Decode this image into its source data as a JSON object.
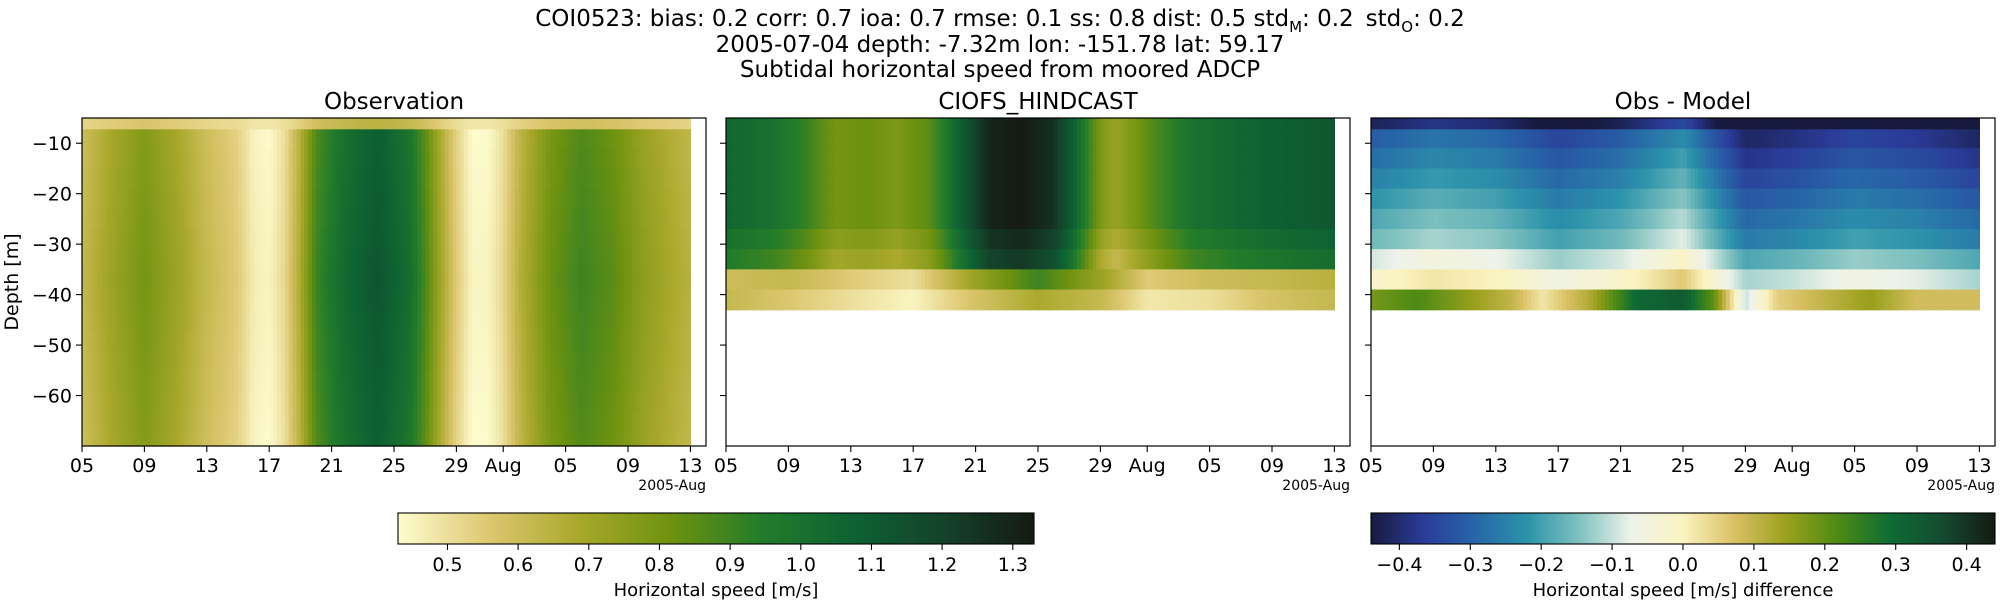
{
  "figure": {
    "title_lines": [
      "COI0523: bias: 0.2  corr: 0.7  ioa: 0.7  rmse: 0.1  ss: 0.8  dist: 0.5  std",
      "2005-07-04 depth: -7.32m lon: -151.78 lat: 59.17",
      "Subtidal horizontal speed from moored ADCP"
    ],
    "std_model_sub": "M",
    "std_obs_sub": "O",
    "std_model_value": ": 0.2",
    "std_obs_value": ": 0.2",
    "std_label": "std"
  },
  "chart_data": [
    {
      "type": "heatmap",
      "title": "Observation",
      "ylabel": "Depth [m]",
      "xlabel": "",
      "x_range": [
        "2005-07-05",
        "2005-08-14"
      ],
      "data_x_range": [
        "2005-07-05",
        "2005-08-13"
      ],
      "ylim": [
        -70,
        -5
      ],
      "depth_levels": [
        -5.5,
        -9,
        -13,
        -17,
        -21,
        -25,
        -29,
        -33,
        -37,
        -41,
        -45,
        -49,
        -53,
        -57,
        -61,
        -65,
        -69
      ],
      "x_ticks": [
        "05",
        "09",
        "13",
        "17",
        "21",
        "25",
        "29",
        "Aug",
        "05",
        "09",
        "13"
      ],
      "x_offset_label": "2005-Aug",
      "y_ticks": [
        -10,
        -20,
        -30,
        -40,
        -50,
        -60
      ],
      "colorbar": "Horizontal speed [m/s]",
      "speed_by_day": [
        [
          "2005-07-05",
          0.62
        ],
        [
          "2005-07-07",
          0.72
        ],
        [
          "2005-07-09",
          0.8
        ],
        [
          "2005-07-11",
          0.72
        ],
        [
          "2005-07-13",
          0.62
        ],
        [
          "2005-07-15",
          0.55
        ],
        [
          "2005-07-16",
          0.47
        ],
        [
          "2005-07-17",
          0.45
        ],
        [
          "2005-07-18",
          0.52
        ],
        [
          "2005-07-19",
          0.68
        ],
        [
          "2005-07-20",
          0.9
        ],
        [
          "2005-07-22",
          1.05
        ],
        [
          "2005-07-24",
          1.13
        ],
        [
          "2005-07-26",
          1.02
        ],
        [
          "2005-07-27",
          0.88
        ],
        [
          "2005-07-28",
          0.7
        ],
        [
          "2005-07-29",
          0.55
        ],
        [
          "2005-07-30",
          0.45
        ],
        [
          "2005-07-31",
          0.45
        ],
        [
          "2005-08-01",
          0.52
        ],
        [
          "2005-08-02",
          0.65
        ],
        [
          "2005-08-04",
          0.82
        ],
        [
          "2005-08-06",
          0.9
        ],
        [
          "2005-08-08",
          0.85
        ],
        [
          "2005-08-10",
          0.75
        ],
        [
          "2005-08-12",
          0.68
        ],
        [
          "2005-08-13",
          0.65
        ]
      ],
      "top_bin_speed": 0.52
    },
    {
      "type": "heatmap",
      "title": "CIOFS_HINDCAST",
      "ylabel": "",
      "x_range": [
        "2005-07-05",
        "2005-08-14"
      ],
      "data_x_range": [
        "2005-07-05",
        "2005-08-13"
      ],
      "ylim": [
        -70,
        -5
      ],
      "depth_levels": [
        -5.5,
        -9,
        -13,
        -17,
        -21,
        -25,
        -29,
        -33,
        -37,
        -41
      ],
      "x_ticks": [
        "05",
        "09",
        "13",
        "17",
        "21",
        "25",
        "29",
        "Aug",
        "05",
        "09",
        "13"
      ],
      "x_offset_label": "2005-Aug",
      "colorbar": "Horizontal speed [m/s]",
      "speed_by_day": [
        [
          "2005-07-05",
          1.05
        ],
        [
          "2005-07-08",
          1.0
        ],
        [
          "2005-07-10",
          0.92
        ],
        [
          "2005-07-12",
          0.8
        ],
        [
          "2005-07-14",
          0.82
        ],
        [
          "2005-07-16",
          0.78
        ],
        [
          "2005-07-18",
          0.85
        ],
        [
          "2005-07-19",
          0.95
        ],
        [
          "2005-07-20",
          1.08
        ],
        [
          "2005-07-21",
          1.2
        ],
        [
          "2005-07-22",
          1.3
        ],
        [
          "2005-07-24",
          1.33
        ],
        [
          "2005-07-26",
          1.25
        ],
        [
          "2005-07-27",
          1.12
        ],
        [
          "2005-07-28",
          0.95
        ],
        [
          "2005-07-29",
          0.78
        ],
        [
          "2005-07-30",
          0.72
        ],
        [
          "2005-07-31",
          0.78
        ],
        [
          "2005-08-02",
          0.9
        ],
        [
          "2005-08-04",
          1.0
        ],
        [
          "2005-08-07",
          1.05
        ],
        [
          "2005-08-09",
          1.08
        ],
        [
          "2005-08-11",
          1.1
        ],
        [
          "2005-08-13",
          1.12
        ]
      ],
      "near_bottom_speed": [
        [
          "2005-07-05",
          0.6
        ],
        [
          "2005-07-09",
          0.62
        ],
        [
          "2005-07-13",
          0.55
        ],
        [
          "2005-07-17",
          0.5
        ],
        [
          "2005-07-21",
          0.72
        ],
        [
          "2005-07-25",
          0.9
        ],
        [
          "2005-07-29",
          0.72
        ],
        [
          "2005-08-01",
          0.55
        ],
        [
          "2005-08-05",
          0.6
        ],
        [
          "2005-08-09",
          0.62
        ],
        [
          "2005-08-13",
          0.65
        ]
      ],
      "bottom_bin_speed": [
        [
          "2005-07-05",
          0.62
        ],
        [
          "2005-07-09",
          0.56
        ],
        [
          "2005-07-13",
          0.5
        ],
        [
          "2005-07-17",
          0.45
        ],
        [
          "2005-07-21",
          0.58
        ],
        [
          "2005-07-25",
          0.68
        ],
        [
          "2005-07-29",
          0.62
        ],
        [
          "2005-08-01",
          0.48
        ],
        [
          "2005-08-05",
          0.5
        ],
        [
          "2005-08-09",
          0.58
        ],
        [
          "2005-08-13",
          0.62
        ]
      ]
    },
    {
      "type": "heatmap",
      "title": "Obs - Model",
      "ylabel": "",
      "x_range": [
        "2005-07-05",
        "2005-08-14"
      ],
      "data_x_range": [
        "2005-07-05",
        "2005-08-13"
      ],
      "ylim": [
        -70,
        -5
      ],
      "depth_levels": [
        -5.5,
        -9,
        -13,
        -17,
        -21,
        -25,
        -29,
        -33,
        -37,
        -41
      ],
      "x_ticks": [
        "05",
        "09",
        "13",
        "17",
        "21",
        "25",
        "29",
        "Aug",
        "05",
        "09",
        "13"
      ],
      "x_offset_label": "2005-Aug",
      "colorbar": "Horizontal speed [m/s] difference",
      "row_difference": [
        -0.44,
        -0.33,
        -0.3,
        -0.27,
        -0.24,
        -0.21,
        -0.18,
        -0.11,
        -0.04,
        0.12
      ],
      "time_difference": [
        [
          "2005-07-05",
          0.02
        ],
        [
          "2005-07-09",
          0.06
        ],
        [
          "2005-07-13",
          0.04
        ],
        [
          "2005-07-17",
          -0.02
        ],
        [
          "2005-07-21",
          0.02
        ],
        [
          "2005-07-25",
          0.1
        ],
        [
          "2005-07-29",
          -0.08
        ],
        [
          "2005-08-01",
          -0.06
        ],
        [
          "2005-08-05",
          -0.02
        ],
        [
          "2005-08-09",
          -0.04
        ],
        [
          "2005-08-13",
          -0.08
        ]
      ],
      "bottom_bin_difference": [
        [
          "2005-07-05",
          0.18
        ],
        [
          "2005-07-08",
          0.22
        ],
        [
          "2005-07-11",
          0.16
        ],
        [
          "2005-07-14",
          0.1
        ],
        [
          "2005-07-16",
          0.02
        ],
        [
          "2005-07-19",
          0.12
        ],
        [
          "2005-07-22",
          0.3
        ],
        [
          "2005-07-25",
          0.33
        ],
        [
          "2005-07-27",
          0.2
        ],
        [
          "2005-07-29",
          -0.1
        ],
        [
          "2005-07-31",
          0.05
        ],
        [
          "2005-08-03",
          0.1
        ],
        [
          "2005-08-06",
          0.15
        ],
        [
          "2005-08-09",
          0.08
        ],
        [
          "2005-08-13",
          0.08
        ]
      ]
    }
  ],
  "colorbars": [
    {
      "label": "Horizontal speed [m/s]",
      "range": [
        0.43,
        1.33
      ],
      "ticks": [
        "0.5",
        "0.6",
        "0.7",
        "0.8",
        "0.9",
        "1.0",
        "1.1",
        "1.2",
        "1.3"
      ],
      "tick_values": [
        0.5,
        0.6,
        0.7,
        0.8,
        0.9,
        1.0,
        1.1,
        1.2,
        1.3
      ],
      "colors": [
        "#fefccf",
        "#ddc770",
        "#a8a82b",
        "#6e9210",
        "#237c2a",
        "#0d6233",
        "#14422a",
        "#151a12"
      ]
    },
    {
      "label": "Horizontal speed [m/s] difference",
      "range": [
        -0.44,
        0.44
      ],
      "ticks": [
        "−0.4",
        "−0.3",
        "−0.2",
        "−0.1",
        "0.0",
        "0.1",
        "0.2",
        "0.3",
        "0.4"
      ],
      "tick_values": [
        -0.4,
        -0.3,
        -0.2,
        -0.1,
        0.0,
        0.1,
        0.2,
        0.3,
        0.4
      ],
      "colors": [
        "#171a3e",
        "#2a3b98",
        "#2766a8",
        "#2c93aa",
        "#7fc1bf",
        "#eef3ea",
        "#fbf3c0",
        "#d8c064",
        "#9aa01d",
        "#4c8a15",
        "#0e6b34",
        "#154a30",
        "#141a13"
      ]
    }
  ]
}
